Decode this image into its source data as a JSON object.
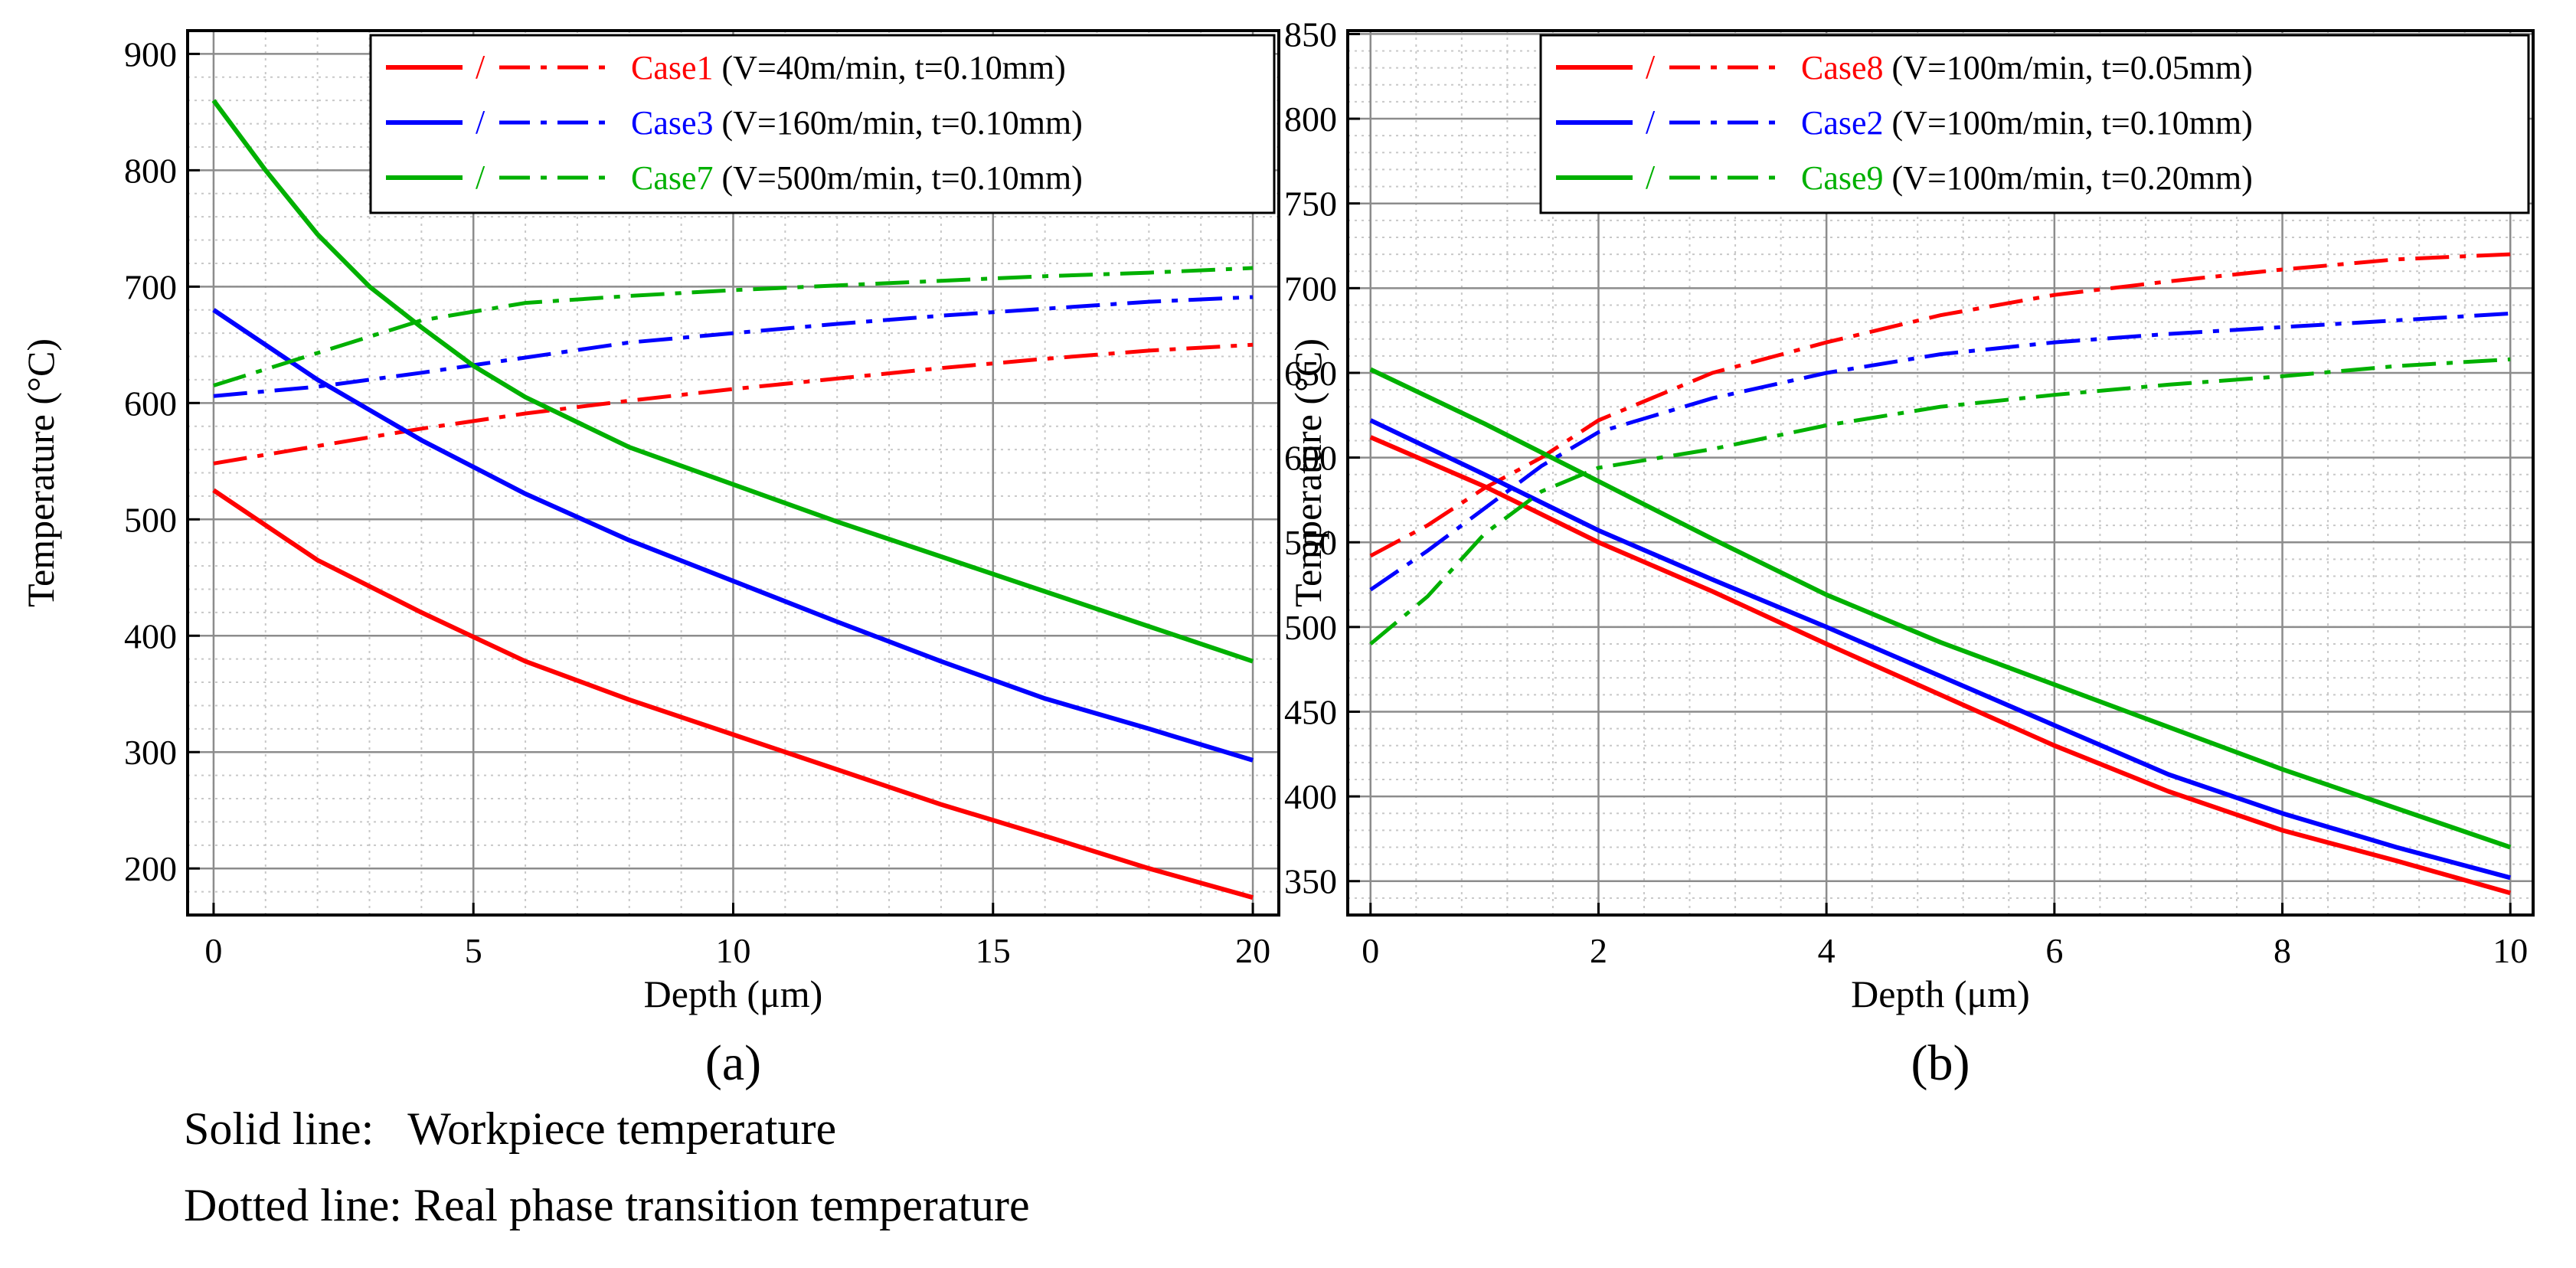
{
  "chart_data": [
    {
      "type": "line",
      "panel_label": "(a)",
      "xlabel": "Depth (μm)",
      "ylabel": "Temperature (°C)",
      "xlim": [
        -0.5,
        20.5
      ],
      "ylim": [
        160,
        920
      ],
      "xticks": [
        0,
        5,
        10,
        15,
        20
      ],
      "yticks": [
        200,
        300,
        400,
        500,
        600,
        700,
        800,
        900
      ],
      "grid": true,
      "legend_position": "top-right",
      "legend_separator": "/",
      "series": [
        {
          "name": "Case1",
          "params": "(V=40m/min,   t=0.10mm)",
          "color": "#ff0000",
          "solid": {
            "x": [
              0,
              2,
              4,
              6,
              8,
              10,
              12,
              14,
              16,
              18,
              20
            ],
            "y": [
              525,
              465,
              420,
              378,
              345,
              315,
              285,
              255,
              228,
              200,
              175
            ]
          },
          "dashed": {
            "x": [
              0,
              2,
              4,
              6,
              8,
              10,
              12,
              14,
              16,
              18,
              20
            ],
            "y": [
              548,
              563,
              578,
              591,
              602,
              612,
              621,
              630,
              638,
              645,
              650
            ]
          }
        },
        {
          "name": "Case3",
          "params": "(V=160m/min, t=0.10mm)",
          "color": "#0000ff",
          "solid": {
            "x": [
              0,
              2,
              4,
              6,
              8,
              10,
              12,
              14,
              16,
              18,
              20
            ],
            "y": [
              680,
              620,
              568,
              522,
              482,
              447,
              412,
              378,
              346,
              320,
              293
            ]
          },
          "dashed": {
            "x": [
              0,
              2,
              4,
              6,
              8,
              10,
              12,
              14,
              16,
              18,
              20
            ],
            "y": [
              606,
              614,
              626,
              639,
              652,
              660,
              668,
              675,
              681,
              687,
              691
            ]
          }
        },
        {
          "name": "Case7",
          "params": "(V=500m/min, t=0.10mm)",
          "color": "#00b000",
          "solid": {
            "x": [
              0,
              1,
              2,
              3,
              4,
              5,
              6,
              8,
              10,
              12,
              14,
              16,
              18,
              20
            ],
            "y": [
              860,
              800,
              745,
              700,
              665,
              632,
              605,
              562,
              530,
              498,
              468,
              438,
              408,
              378
            ]
          },
          "dashed": {
            "x": [
              0,
              2,
              4,
              6,
              8,
              10,
              12,
              14,
              16,
              18,
              20
            ],
            "y": [
              615,
              643,
              671,
              686,
              692,
              697,
              701,
              705,
              709,
              712,
              716
            ]
          }
        }
      ]
    },
    {
      "type": "line",
      "panel_label": "(b)",
      "xlabel": "Depth (μm)",
      "ylabel": "Temperature (°C)",
      "xlim": [
        -0.2,
        10.2
      ],
      "ylim": [
        330,
        852
      ],
      "xticks": [
        0,
        2,
        4,
        6,
        8,
        10
      ],
      "yticks": [
        350,
        400,
        450,
        500,
        550,
        600,
        650,
        700,
        750,
        800,
        850
      ],
      "grid": true,
      "legend_position": "top-right",
      "legend_separator": "/",
      "series": [
        {
          "name": "Case8",
          "params": "(V=100m/min, t=0.05mm)",
          "color": "#ff0000",
          "solid": {
            "x": [
              0,
              1,
              2,
              3,
              4,
              5,
              6,
              7,
              8,
              9,
              10
            ],
            "y": [
              612,
              583,
              550,
              521,
              490,
              460,
              430,
              403,
              380,
              362,
              343
            ]
          },
          "dashed": {
            "x": [
              0,
              0.5,
              1,
              1.5,
              2,
              3,
              4,
              5,
              6,
              7,
              8,
              9,
              10
            ],
            "y": [
              542,
              560,
              582,
              600,
              622,
              650,
              668,
              684,
              696,
              704,
              711,
              717,
              720
            ]
          }
        },
        {
          "name": "Case2",
          "params": "(V=100m/min, t=0.10mm)",
          "color": "#0000ff",
          "solid": {
            "x": [
              0,
              1,
              2,
              3,
              4,
              5,
              6,
              7,
              8,
              9,
              10
            ],
            "y": [
              622,
              590,
              557,
              528,
              500,
              471,
              442,
              413,
              390,
              370,
              352
            ]
          },
          "dashed": {
            "x": [
              0,
              0.5,
              1,
              1.5,
              2,
              3,
              4,
              5,
              6,
              7,
              8,
              9,
              10
            ],
            "y": [
              522,
              545,
              570,
              595,
              615,
              635,
              650,
              661,
              668,
              673,
              677,
              681,
              685
            ]
          }
        },
        {
          "name": "Case9",
          "params": "(V=100m/min, t=0.20mm)",
          "color": "#00b000",
          "solid": {
            "x": [
              0,
              1,
              2,
              3,
              4,
              5,
              6,
              7,
              8,
              9,
              10
            ],
            "y": [
              652,
              620,
              586,
              552,
              519,
              491,
              466,
              441,
              416,
              393,
              370
            ]
          },
          "dashed": {
            "x": [
              0,
              0.5,
              1,
              1.5,
              2,
              3,
              4,
              5,
              6,
              7,
              8,
              9,
              10
            ],
            "y": [
              490,
              518,
              555,
              580,
              594,
              605,
              619,
              630,
              637,
              643,
              648,
              654,
              658
            ]
          }
        }
      ]
    }
  ],
  "notes": {
    "solid": "Solid line:   Workpiece temperature",
    "dotted": "Dotted line: Real phase transition temperature"
  }
}
